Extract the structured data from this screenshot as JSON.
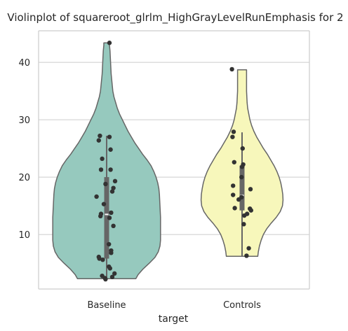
{
  "chart_data": {
    "type": "violin",
    "title": "Violinplot of squareroot_glrlm_HighGrayLevelRunEmphasis for 2",
    "xlabel": "target",
    "ylabel": "",
    "categories": [
      "Baseline",
      "Controls"
    ],
    "ylim": [
      0.5,
      45.5
    ],
    "yticks": [
      10,
      20,
      30,
      40
    ],
    "grid": "horizontal",
    "colors": {
      "Baseline": "#96c9be",
      "Controls": "#f7f7bb",
      "outline": "#666666",
      "points": "#333333",
      "grid": "#cccccc",
      "spine": "#cccccc"
    },
    "series": [
      {
        "name": "Baseline",
        "min": 2.3,
        "q1": 5.8,
        "median": 13.5,
        "q3": 20.0,
        "max": 27.2,
        "density": [
          [
            2.3,
            0.52
          ],
          [
            3,
            0.56
          ],
          [
            4,
            0.65
          ],
          [
            5,
            0.76
          ],
          [
            6,
            0.86
          ],
          [
            7,
            0.92
          ],
          [
            8,
            0.95
          ],
          [
            9,
            0.96
          ],
          [
            10,
            0.96
          ],
          [
            11,
            0.96
          ],
          [
            12,
            0.96
          ],
          [
            13,
            0.96
          ],
          [
            14,
            0.955
          ],
          [
            15,
            0.95
          ],
          [
            16,
            0.945
          ],
          [
            17,
            0.94
          ],
          [
            18,
            0.93
          ],
          [
            19,
            0.91
          ],
          [
            20,
            0.88
          ],
          [
            21,
            0.84
          ],
          [
            22,
            0.79
          ],
          [
            23,
            0.72
          ],
          [
            24,
            0.64
          ],
          [
            25,
            0.57
          ],
          [
            26,
            0.5
          ],
          [
            27,
            0.44
          ],
          [
            28,
            0.38
          ],
          [
            29,
            0.33
          ],
          [
            30,
            0.28
          ],
          [
            31,
            0.23
          ],
          [
            32,
            0.19
          ],
          [
            33,
            0.16
          ],
          [
            34,
            0.13
          ],
          [
            35,
            0.11
          ],
          [
            36,
            0.1
          ],
          [
            37,
            0.09
          ],
          [
            38,
            0.08
          ],
          [
            39,
            0.075
          ],
          [
            40,
            0.07
          ],
          [
            41,
            0.065
          ],
          [
            42,
            0.06
          ],
          [
            43,
            0.05
          ],
          [
            43.4,
            0.05
          ]
        ],
        "points": [
          [
            43.4,
            0.05
          ],
          [
            27.2,
            -0.12
          ],
          [
            27.0,
            0.05
          ],
          [
            26.4,
            -0.14
          ],
          [
            24.8,
            0.07
          ],
          [
            23.2,
            -0.08
          ],
          [
            21.3,
            0.07
          ],
          [
            21.3,
            -0.1
          ],
          [
            19.3,
            0.15
          ],
          [
            18.8,
            -0.02
          ],
          [
            18.1,
            0.12
          ],
          [
            17.5,
            0.1
          ],
          [
            16.6,
            -0.18
          ],
          [
            15.3,
            -0.05
          ],
          [
            13.8,
            0.08
          ],
          [
            13.6,
            -0.1
          ],
          [
            13.2,
            -0.11
          ],
          [
            12.9,
            0.05
          ],
          [
            11.5,
            0.12
          ],
          [
            8.3,
            0.04
          ],
          [
            7.2,
            0.08
          ],
          [
            6.8,
            0.08
          ],
          [
            6.1,
            -0.14
          ],
          [
            5.8,
            -0.13
          ],
          [
            5.6,
            -0.07
          ],
          [
            4.4,
            0.04
          ],
          [
            4.1,
            0.06
          ],
          [
            3.2,
            0.14
          ],
          [
            2.8,
            -0.08
          ],
          [
            2.6,
            0.1
          ],
          [
            2.4,
            -0.03
          ],
          [
            2.2,
            -0.02
          ]
        ]
      },
      {
        "name": "Controls",
        "min": 6.3,
        "q1": 14.2,
        "median": 16.8,
        "q3": 22.0,
        "max": 27.8,
        "density": [
          [
            6.2,
            0.28
          ],
          [
            7,
            0.29
          ],
          [
            8,
            0.31
          ],
          [
            9,
            0.34
          ],
          [
            10,
            0.38
          ],
          [
            11,
            0.44
          ],
          [
            12,
            0.52
          ],
          [
            13,
            0.61
          ],
          [
            14,
            0.68
          ],
          [
            15,
            0.72
          ],
          [
            16,
            0.73
          ],
          [
            17,
            0.725
          ],
          [
            18,
            0.71
          ],
          [
            19,
            0.69
          ],
          [
            20,
            0.66
          ],
          [
            21,
            0.62
          ],
          [
            22,
            0.57
          ],
          [
            23,
            0.51
          ],
          [
            24,
            0.45
          ],
          [
            25,
            0.38
          ],
          [
            26,
            0.32
          ],
          [
            27,
            0.26
          ],
          [
            28,
            0.21
          ],
          [
            29,
            0.17
          ],
          [
            30,
            0.14
          ],
          [
            31,
            0.12
          ],
          [
            32,
            0.1
          ],
          [
            33,
            0.09
          ],
          [
            34,
            0.085
          ],
          [
            35,
            0.08
          ],
          [
            36,
            0.08
          ],
          [
            37,
            0.08
          ],
          [
            38,
            0.08
          ],
          [
            38.7,
            0.08
          ]
        ],
        "points": [
          [
            38.8,
            -0.18
          ],
          [
            27.9,
            -0.15
          ],
          [
            27.0,
            -0.17
          ],
          [
            25.0,
            0.01
          ],
          [
            22.6,
            -0.14
          ],
          [
            22.2,
            0.02
          ],
          [
            21.8,
            0.0
          ],
          [
            20.0,
            -0.01
          ],
          [
            18.5,
            -0.16
          ],
          [
            17.9,
            0.15
          ],
          [
            16.9,
            -0.16
          ],
          [
            16.5,
            -0.01
          ],
          [
            16.1,
            -0.06
          ],
          [
            14.6,
            -0.13
          ],
          [
            14.5,
            0.14
          ],
          [
            14.2,
            0.16
          ],
          [
            13.6,
            0.09
          ],
          [
            13.3,
            0.04
          ],
          [
            11.8,
            0.03
          ],
          [
            7.6,
            0.12
          ],
          [
            6.3,
            0.08
          ]
        ]
      }
    ]
  }
}
